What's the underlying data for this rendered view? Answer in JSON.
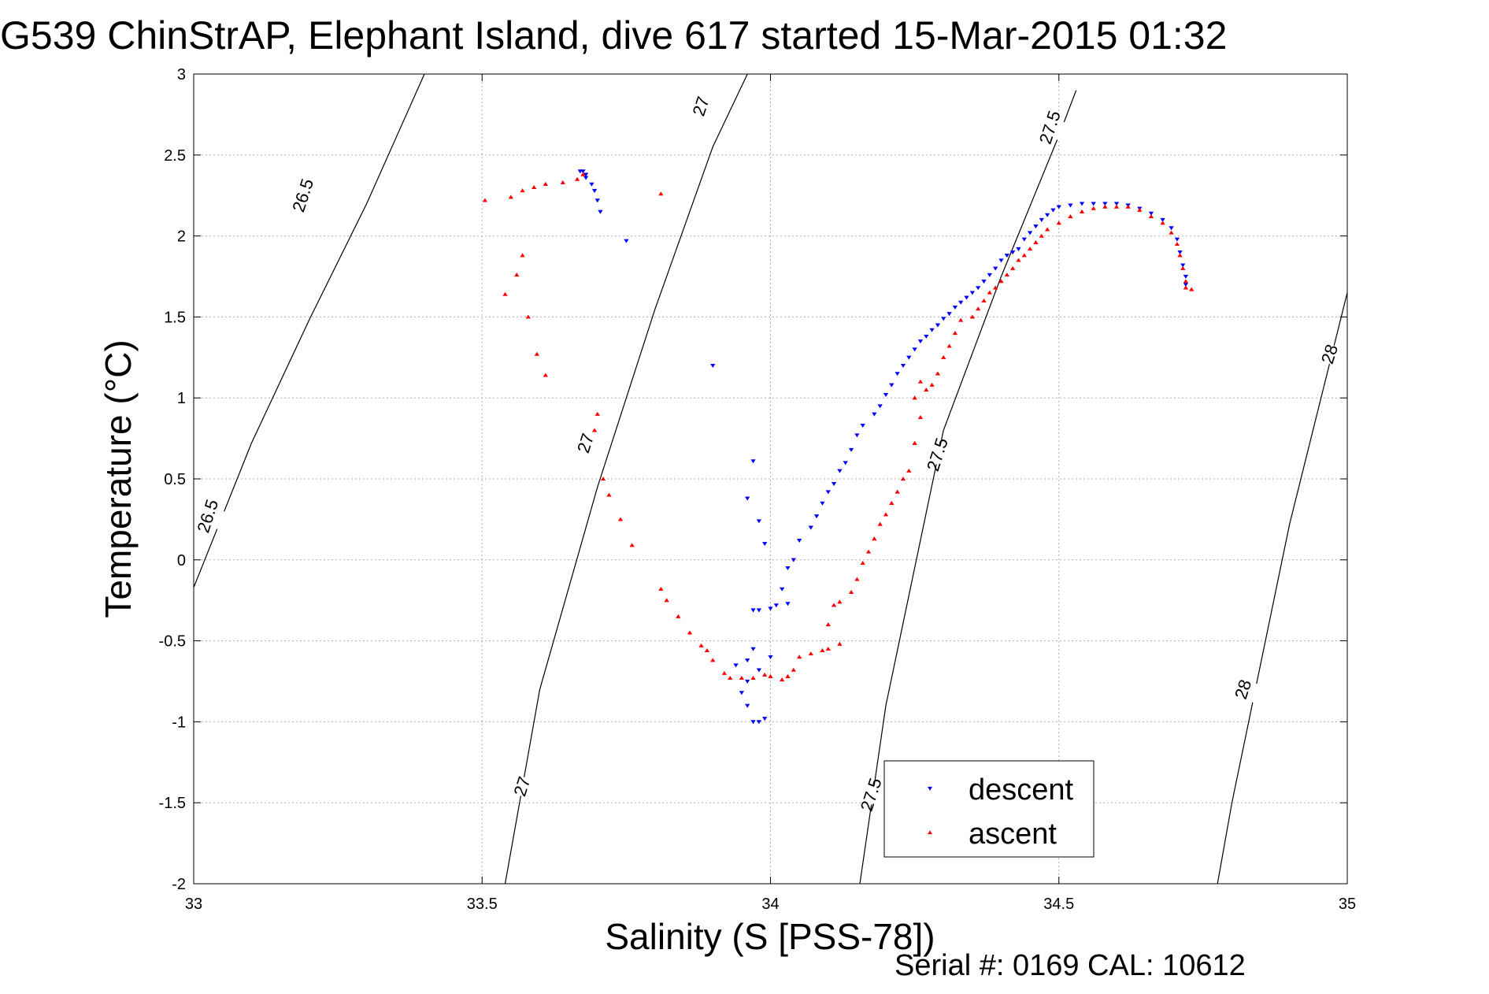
{
  "chart_data": {
    "type": "scatter",
    "title": "G539 ChinStrAP, Elephant Island, dive 617 started 15-Mar-2015 01:32",
    "xlabel": "Salinity (S [PSS-78])",
    "ylabel": "Temperature (°C)",
    "xlim": [
      33,
      35
    ],
    "ylim": [
      -2,
      3
    ],
    "xticks": [
      33,
      33.5,
      34,
      34.5,
      35
    ],
    "yticks": [
      -2,
      -1.5,
      -1,
      -0.5,
      0,
      0.5,
      1,
      1.5,
      2,
      2.5,
      3
    ],
    "xtick_labels": [
      "33",
      "33.5",
      "34",
      "34.5",
      "35"
    ],
    "ytick_labels": [
      "-2",
      "-1.5",
      "-1",
      "-0.5",
      "0",
      "0.5",
      "1",
      "1.5",
      "2",
      "2.5",
      "3"
    ],
    "grid": true,
    "legend_position": "bottom-right",
    "footer": "Serial #: 0169 CAL: 10612",
    "contours": [
      {
        "label": "26.5",
        "points": [
          [
            33.0,
            -0.17
          ],
          [
            33.1,
            0.72
          ],
          [
            33.2,
            1.48
          ],
          [
            33.3,
            2.2
          ],
          [
            33.4,
            3.0
          ]
        ],
        "label_positions": [
          [
            33.025,
            0.27
          ],
          [
            33.19,
            2.25
          ]
        ]
      },
      {
        "label": "27",
        "points": [
          [
            33.54,
            -2.0
          ],
          [
            33.6,
            -0.8
          ],
          [
            33.7,
            0.45
          ],
          [
            33.8,
            1.55
          ],
          [
            33.9,
            2.55
          ],
          [
            33.96,
            3.0
          ]
        ],
        "label_positions": [
          [
            33.57,
            -1.4
          ],
          [
            33.68,
            0.72
          ],
          [
            33.88,
            2.8
          ]
        ]
      },
      {
        "label": "27.5",
        "points": [
          [
            34.155,
            -2.0
          ],
          [
            34.2,
            -0.9
          ],
          [
            34.3,
            0.8
          ],
          [
            34.4,
            1.75
          ],
          [
            34.5,
            2.62
          ],
          [
            34.53,
            2.9
          ]
        ],
        "label_positions": [
          [
            34.175,
            -1.45
          ],
          [
            34.29,
            0.65
          ],
          [
            34.485,
            2.67
          ]
        ]
      },
      {
        "label": "28",
        "points": [
          [
            34.775,
            -2.0
          ],
          [
            34.8,
            -1.5
          ],
          [
            34.9,
            0.22
          ],
          [
            35.0,
            1.65
          ]
        ],
        "label_positions": [
          [
            34.82,
            -0.8
          ],
          [
            34.97,
            1.27
          ]
        ]
      }
    ],
    "series": [
      {
        "name": "descent",
        "color": "#0000ff",
        "marker": "triangle-down",
        "points": [
          [
            33.67,
            2.4
          ],
          [
            33.675,
            2.4
          ],
          [
            33.68,
            2.38
          ],
          [
            33.68,
            2.36
          ],
          [
            33.69,
            2.32
          ],
          [
            33.695,
            2.28
          ],
          [
            33.7,
            2.22
          ],
          [
            33.705,
            2.15
          ],
          [
            33.75,
            1.97
          ],
          [
            33.9,
            1.2
          ],
          [
            33.97,
            0.61
          ],
          [
            33.96,
            0.38
          ],
          [
            33.98,
            0.24
          ],
          [
            33.99,
            0.1
          ],
          [
            33.97,
            -0.31
          ],
          [
            33.98,
            -0.31
          ],
          [
            34.0,
            -0.3
          ],
          [
            34.01,
            -0.28
          ],
          [
            34.03,
            -0.27
          ],
          [
            33.96,
            -0.62
          ],
          [
            33.97,
            -0.55
          ],
          [
            33.98,
            -0.68
          ],
          [
            34.0,
            -0.6
          ],
          [
            33.94,
            -0.65
          ],
          [
            33.95,
            -0.82
          ],
          [
            33.96,
            -0.9
          ],
          [
            33.97,
            -1.0
          ],
          [
            33.98,
            -1.0
          ],
          [
            33.99,
            -0.98
          ],
          [
            33.96,
            -0.75
          ],
          [
            34.02,
            -0.18
          ],
          [
            34.03,
            -0.05
          ],
          [
            34.04,
            0.0
          ],
          [
            34.05,
            0.12
          ],
          [
            34.07,
            0.2
          ],
          [
            34.08,
            0.27
          ],
          [
            34.09,
            0.35
          ],
          [
            34.1,
            0.42
          ],
          [
            34.11,
            0.47
          ],
          [
            34.12,
            0.55
          ],
          [
            34.13,
            0.6
          ],
          [
            34.14,
            0.68
          ],
          [
            34.15,
            0.77
          ],
          [
            34.16,
            0.83
          ],
          [
            34.18,
            0.9
          ],
          [
            34.19,
            0.95
          ],
          [
            34.2,
            1.02
          ],
          [
            34.21,
            1.08
          ],
          [
            34.22,
            1.15
          ],
          [
            34.23,
            1.2
          ],
          [
            34.24,
            1.25
          ],
          [
            34.25,
            1.3
          ],
          [
            34.26,
            1.35
          ],
          [
            34.27,
            1.38
          ],
          [
            34.28,
            1.42
          ],
          [
            34.29,
            1.45
          ],
          [
            34.3,
            1.49
          ],
          [
            34.31,
            1.52
          ],
          [
            34.32,
            1.56
          ],
          [
            34.33,
            1.59
          ],
          [
            34.34,
            1.62
          ],
          [
            34.35,
            1.65
          ],
          [
            34.36,
            1.68
          ],
          [
            34.37,
            1.72
          ],
          [
            34.38,
            1.76
          ],
          [
            34.39,
            1.8
          ],
          [
            34.4,
            1.85
          ],
          [
            34.41,
            1.88
          ],
          [
            34.42,
            1.9
          ],
          [
            34.43,
            1.92
          ],
          [
            34.44,
            1.98
          ],
          [
            34.45,
            2.02
          ],
          [
            34.46,
            2.06
          ],
          [
            34.47,
            2.1
          ],
          [
            34.48,
            2.13
          ],
          [
            34.49,
            2.16
          ],
          [
            34.5,
            2.18
          ],
          [
            34.52,
            2.19
          ],
          [
            34.54,
            2.2
          ],
          [
            34.56,
            2.2
          ],
          [
            34.58,
            2.2
          ],
          [
            34.6,
            2.2
          ],
          [
            34.62,
            2.19
          ],
          [
            34.64,
            2.17
          ],
          [
            34.66,
            2.14
          ],
          [
            34.68,
            2.1
          ],
          [
            34.695,
            2.05
          ],
          [
            34.705,
            1.98
          ],
          [
            34.71,
            1.9
          ],
          [
            34.715,
            1.82
          ],
          [
            34.72,
            1.75
          ],
          [
            34.72,
            1.7
          ]
        ]
      },
      {
        "name": "ascent",
        "color": "#ff0000",
        "marker": "triangle-up",
        "points": [
          [
            33.505,
            2.22
          ],
          [
            33.55,
            2.24
          ],
          [
            33.57,
            2.28
          ],
          [
            33.59,
            2.3
          ],
          [
            33.61,
            2.32
          ],
          [
            33.64,
            2.33
          ],
          [
            33.665,
            2.35
          ],
          [
            33.675,
            2.38
          ],
          [
            33.81,
            2.26
          ],
          [
            33.54,
            1.64
          ],
          [
            33.56,
            1.76
          ],
          [
            33.57,
            1.88
          ],
          [
            33.58,
            1.5
          ],
          [
            33.595,
            1.27
          ],
          [
            33.61,
            1.14
          ],
          [
            33.7,
            0.9
          ],
          [
            33.695,
            0.8
          ],
          [
            33.71,
            0.5
          ],
          [
            33.72,
            0.4
          ],
          [
            33.74,
            0.25
          ],
          [
            33.76,
            0.09
          ],
          [
            33.81,
            -0.18
          ],
          [
            33.82,
            -0.25
          ],
          [
            33.84,
            -0.35
          ],
          [
            33.86,
            -0.45
          ],
          [
            33.88,
            -0.53
          ],
          [
            33.89,
            -0.56
          ],
          [
            33.9,
            -0.62
          ],
          [
            33.92,
            -0.7
          ],
          [
            33.93,
            -0.73
          ],
          [
            33.95,
            -0.73
          ],
          [
            33.97,
            -0.73
          ],
          [
            33.99,
            -0.71
          ],
          [
            34.0,
            -0.72
          ],
          [
            34.02,
            -0.74
          ],
          [
            34.03,
            -0.72
          ],
          [
            34.04,
            -0.68
          ],
          [
            34.05,
            -0.6
          ],
          [
            34.07,
            -0.58
          ],
          [
            34.09,
            -0.56
          ],
          [
            34.1,
            -0.55
          ],
          [
            34.12,
            -0.52
          ],
          [
            34.1,
            -0.4
          ],
          [
            34.11,
            -0.28
          ],
          [
            34.12,
            -0.26
          ],
          [
            34.14,
            -0.2
          ],
          [
            34.15,
            -0.12
          ],
          [
            34.16,
            -0.02
          ],
          [
            34.17,
            0.05
          ],
          [
            34.18,
            0.13
          ],
          [
            34.19,
            0.22
          ],
          [
            34.2,
            0.28
          ],
          [
            34.21,
            0.35
          ],
          [
            34.22,
            0.42
          ],
          [
            34.23,
            0.5
          ],
          [
            34.24,
            0.55
          ],
          [
            34.25,
            0.72
          ],
          [
            34.26,
            0.88
          ],
          [
            34.25,
            1.0
          ],
          [
            34.26,
            1.1
          ],
          [
            34.27,
            1.05
          ],
          [
            34.28,
            1.08
          ],
          [
            34.29,
            1.15
          ],
          [
            34.3,
            1.25
          ],
          [
            34.31,
            1.32
          ],
          [
            34.32,
            1.4
          ],
          [
            34.33,
            1.48
          ],
          [
            34.35,
            1.5
          ],
          [
            34.36,
            1.55
          ],
          [
            34.37,
            1.6
          ],
          [
            34.38,
            1.65
          ],
          [
            34.39,
            1.68
          ],
          [
            34.4,
            1.72
          ],
          [
            34.41,
            1.76
          ],
          [
            34.42,
            1.8
          ],
          [
            34.43,
            1.85
          ],
          [
            34.44,
            1.88
          ],
          [
            34.45,
            1.92
          ],
          [
            34.46,
            1.96
          ],
          [
            34.47,
            2.0
          ],
          [
            34.48,
            2.04
          ],
          [
            34.5,
            2.08
          ],
          [
            34.52,
            2.12
          ],
          [
            34.54,
            2.15
          ],
          [
            34.56,
            2.17
          ],
          [
            34.58,
            2.18
          ],
          [
            34.6,
            2.18
          ],
          [
            34.62,
            2.18
          ],
          [
            34.64,
            2.16
          ],
          [
            34.66,
            2.12
          ],
          [
            34.68,
            2.08
          ],
          [
            34.695,
            2.02
          ],
          [
            34.705,
            1.95
          ],
          [
            34.71,
            1.88
          ],
          [
            34.715,
            1.8
          ],
          [
            34.72,
            1.72
          ],
          [
            34.72,
            1.68
          ],
          [
            34.73,
            1.67
          ]
        ]
      }
    ]
  }
}
